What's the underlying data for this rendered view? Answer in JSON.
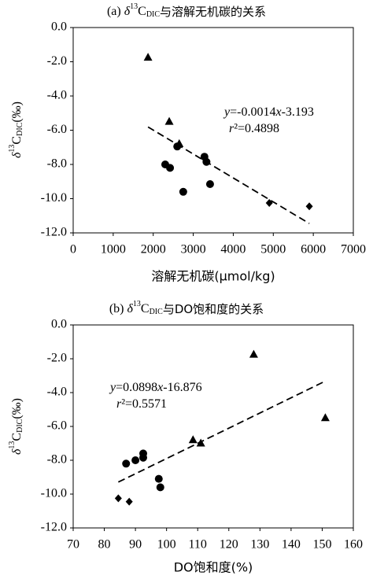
{
  "chart_data": [
    {
      "type": "scatter",
      "title": [
        "(a) ",
        "δ",
        "13",
        "C",
        "DIC",
        "与溶解无机碳的关系"
      ],
      "y_label": [
        "δ",
        "13",
        "C",
        "DIC",
        "(‰)"
      ],
      "x_label": "溶解无机碳(μmol/kg)",
      "annotation": [
        [
          "y",
          "=-0.0014",
          "x",
          "-3.193"
        ],
        [
          "r",
          "²=0.4898"
        ]
      ],
      "xlim": [
        0,
        7000
      ],
      "xticks": [
        0,
        1000,
        2000,
        3000,
        4000,
        5000,
        6000,
        7000
      ],
      "ylim": [
        -12,
        0
      ],
      "yticks": [
        {
          "value": 0,
          "label": "0.0"
        },
        {
          "value": -2,
          "label": "-2.0"
        },
        {
          "value": -4,
          "label": "-4.0"
        },
        {
          "value": -6,
          "label": "-6.0"
        },
        {
          "value": -8,
          "label": "-8.0"
        },
        {
          "value": -10,
          "label": "-10.0"
        },
        {
          "value": -12,
          "label": "-12.0"
        }
      ],
      "series": [
        {
          "marker": "triangle",
          "color": "#000000",
          "x": [
            1870,
            2400,
            2650
          ],
          "values": [
            -1.75,
            -5.5,
            -6.8
          ]
        },
        {
          "marker": "circle",
          "color": "#000000",
          "x": [
            2300,
            2420,
            2600,
            2750,
            3280,
            3330,
            3420
          ],
          "values": [
            -8.0,
            -8.2,
            -6.95,
            -9.6,
            -7.55,
            -7.85,
            -9.15
          ]
        },
        {
          "marker": "diamond",
          "color": "#000000",
          "x": [
            4900,
            5900
          ],
          "values": [
            -10.25,
            -10.45
          ]
        }
      ],
      "trendline": {
        "color": "#000000",
        "x": [
          1870,
          5900
        ],
        "values": [
          -5.81,
          -11.45
        ]
      }
    },
    {
      "type": "scatter",
      "title": [
        "(b) ",
        "δ",
        "13",
        "C",
        "DIC",
        "与DO饱和度的关系"
      ],
      "y_label": [
        "δ",
        "13",
        "C",
        "DIC",
        "(‰)"
      ],
      "x_label": "DO饱和度(%)",
      "annotation": [
        [
          "y",
          "=0.0898",
          "x",
          "-16.876"
        ],
        [
          "r",
          "²=0.5571"
        ]
      ],
      "xlim": [
        70,
        160
      ],
      "xticks": [
        70,
        80,
        90,
        100,
        110,
        120,
        130,
        140,
        150,
        160
      ],
      "ylim": [
        -12,
        0
      ],
      "yticks": [
        {
          "value": 0,
          "label": "0.0"
        },
        {
          "value": -2,
          "label": "-2.0"
        },
        {
          "value": -4,
          "label": "-4.0"
        },
        {
          "value": -6,
          "label": "-6.0"
        },
        {
          "value": -8,
          "label": "-8.0"
        },
        {
          "value": -10,
          "label": "-10.0"
        },
        {
          "value": -12,
          "label": "-12.0"
        }
      ],
      "series": [
        {
          "marker": "triangle",
          "color": "#000000",
          "x": [
            128,
            151,
            108.5,
            111
          ],
          "values": [
            -1.75,
            -5.5,
            -6.8,
            -7.0
          ]
        },
        {
          "marker": "circle",
          "color": "#000000",
          "x": [
            87,
            90,
            92.5,
            92.5,
            97.5,
            98
          ],
          "values": [
            -8.2,
            -8.0,
            -7.6,
            -7.85,
            -9.1,
            -9.6
          ]
        },
        {
          "marker": "diamond",
          "color": "#000000",
          "x": [
            84.5,
            88
          ],
          "values": [
            -10.25,
            -10.45
          ]
        }
      ],
      "trendline": {
        "color": "#000000",
        "x": [
          84.5,
          151
        ],
        "values": [
          -9.29,
          -3.32
        ]
      }
    }
  ]
}
